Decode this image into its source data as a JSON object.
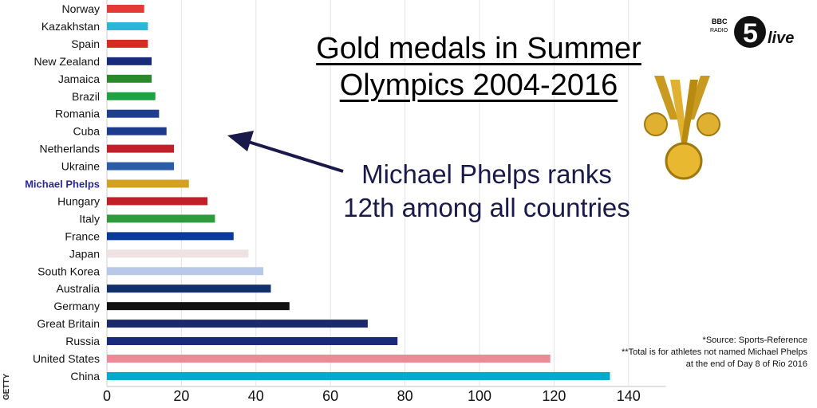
{
  "chart_data": {
    "type": "bar",
    "orientation": "horizontal",
    "title": "Gold medals in Summer Olympics 2004-2016",
    "categories": [
      "Norway",
      "Kazakhstan",
      "Spain",
      "New Zealand",
      "Jamaica",
      "Brazil",
      "Romania",
      "Cuba",
      "Netherlands",
      "Ukraine",
      "Michael Phelps",
      "Hungary",
      "Italy",
      "France",
      "Japan",
      "South Korea",
      "Australia",
      "Germany",
      "Great Britain",
      "Russia",
      "United States",
      "China"
    ],
    "values": [
      10,
      11,
      11,
      12,
      12,
      13,
      14,
      16,
      18,
      18,
      22,
      27,
      29,
      34,
      38,
      42,
      44,
      49,
      70,
      78,
      119,
      135
    ],
    "colors": [
      "#e53935",
      "#2bb5d6",
      "#d62b1f",
      "#1a2a7a",
      "#2a8a2a",
      "#1ea140",
      "#1d3e8c",
      "#1d3a8c",
      "#c0202a",
      "#2a5ca8",
      "#d4a020",
      "#c0202a",
      "#2e9a3a",
      "#0a3a9a",
      "#eee2e4",
      "#b8c8e8",
      "#12306a",
      "#111111",
      "#1a2a6a",
      "#1a2a7a",
      "#ee8a96",
      "#00aacc"
    ],
    "xlim": [
      0,
      150
    ],
    "xticks": [
      0,
      20,
      40,
      60,
      80,
      100,
      120,
      140
    ],
    "grid": true,
    "highlight": "Michael Phelps",
    "highlight_color": "#2a2a9a"
  },
  "annotation": {
    "line1": "Michael Phelps ranks",
    "line2": "12th among all countries"
  },
  "title": {
    "line1": "Gold medals in Summer",
    "line2": "Olympics 2004-2016"
  },
  "source": {
    "line1": "*Source: Sports-Reference",
    "line2": "**Total is for athletes not named Michael Phelps",
    "line3": "at the end of Day 8 of Rio 2016"
  },
  "logo": {
    "bbc": "BBC",
    "radio": "RADIO",
    "five": "5",
    "live": "live"
  },
  "credit": "GETTY"
}
